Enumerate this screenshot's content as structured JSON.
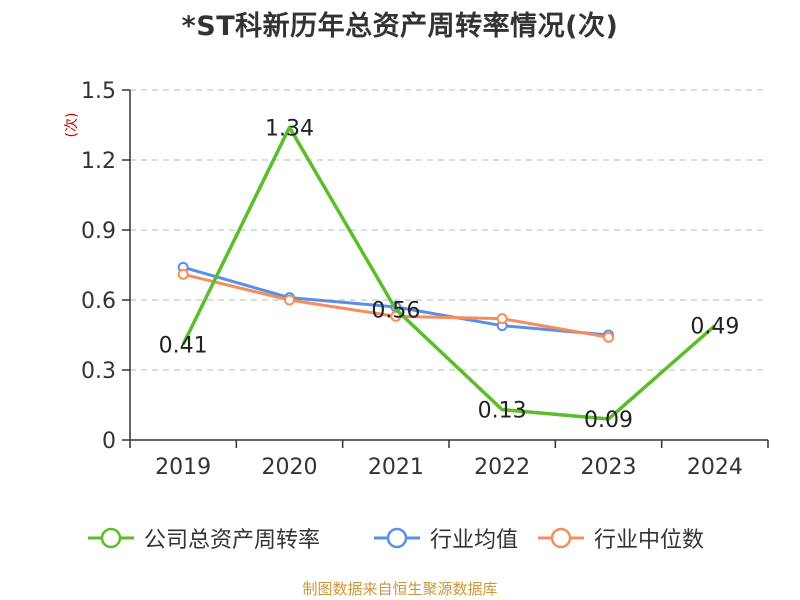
{
  "chart_data": {
    "type": "line",
    "title": "*ST科新历年总资产周转率情况(次)",
    "ylabel": "(次)",
    "xlabel": "",
    "categories": [
      "2019",
      "2020",
      "2021",
      "2022",
      "2023",
      "2024"
    ],
    "ylim": [
      0,
      1.5
    ],
    "yticks": [
      "0",
      "0.3",
      "0.6",
      "0.9",
      "1.2",
      "1.5"
    ],
    "ytick_values": [
      0,
      0.3,
      0.6,
      0.9,
      1.2,
      1.5
    ],
    "grid": true,
    "legend_position": "bottom",
    "series": [
      {
        "name": "公司总资产周转率",
        "color": "#5cbd2b",
        "values": [
          0.41,
          1.34,
          0.56,
          0.13,
          0.09,
          0.49
        ],
        "labels": [
          "0.41",
          "1.34",
          "0.56",
          "0.13",
          "0.09",
          "0.49"
        ]
      },
      {
        "name": "行业均值",
        "color": "#5b8ee6",
        "values": [
          0.74,
          0.61,
          0.57,
          0.49,
          0.45,
          null
        ]
      },
      {
        "name": "行业中位数",
        "color": "#f58d5c",
        "values": [
          0.71,
          0.6,
          0.53,
          0.52,
          0.44,
          null
        ]
      }
    ]
  },
  "source": "制图数据来自恒生聚源数据库"
}
